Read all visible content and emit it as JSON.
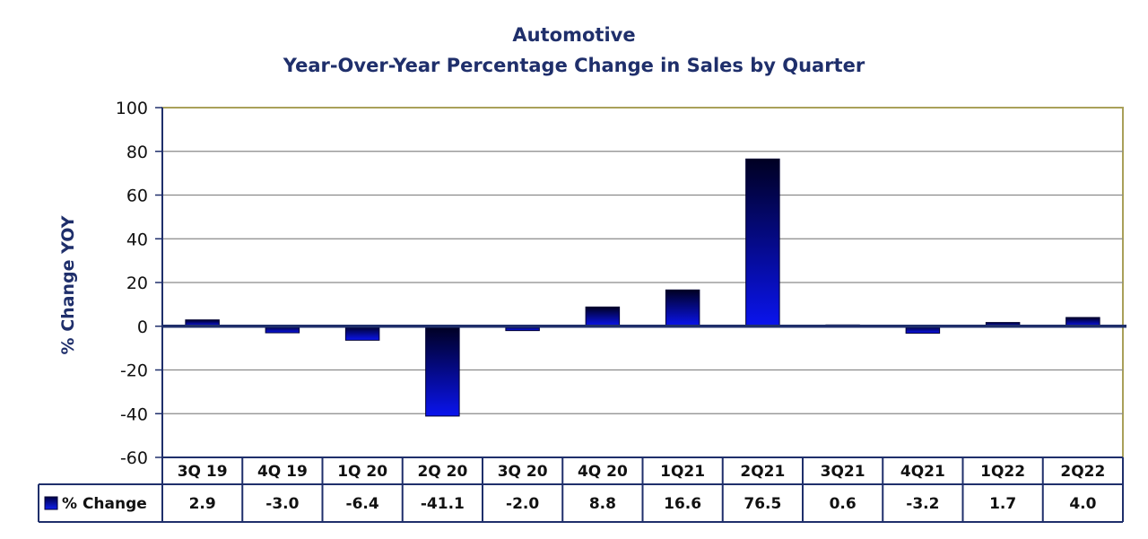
{
  "chart_data": {
    "type": "bar",
    "title": "Automotive",
    "subtitle": "Year-Over-Year Percentage Change in Sales by Quarter",
    "xlabel": "",
    "ylabel": "% Change YOY",
    "categories": [
      "3Q 19",
      "4Q 19",
      "1Q 20",
      "2Q 20",
      "3Q 20",
      "4Q 20",
      "1Q21",
      "2Q21",
      "3Q21",
      "4Q21",
      "1Q22",
      "2Q22"
    ],
    "series": [
      {
        "name": "% Change",
        "values": [
          2.9,
          -3.0,
          -6.4,
          -41.1,
          -2.0,
          8.8,
          16.6,
          76.5,
          0.6,
          -3.2,
          1.7,
          4.0
        ],
        "value_labels": [
          "2.9",
          "-3.0",
          "-6.4",
          "-41.1",
          "-2.0",
          "8.8",
          "16.6",
          "76.5",
          "0.6",
          "-3.2",
          "1.7",
          "4.0"
        ]
      }
    ],
    "ylim": [
      -60,
      100
    ],
    "yticks": [
      "100",
      "80",
      "60",
      "40",
      "20",
      "0",
      "-20",
      "-40",
      "-60"
    ],
    "ytick_values": [
      100,
      80,
      60,
      40,
      20,
      0,
      -20,
      -40,
      -60
    ],
    "grid": true,
    "legend_placement": "bottom-left data table",
    "colors": {
      "bar_dark": "#000022",
      "bar_bright": "#0a14ee",
      "axis": "#1f2f6b",
      "plot_border": "#a9a05a",
      "grid": "#8a8a8a"
    }
  }
}
